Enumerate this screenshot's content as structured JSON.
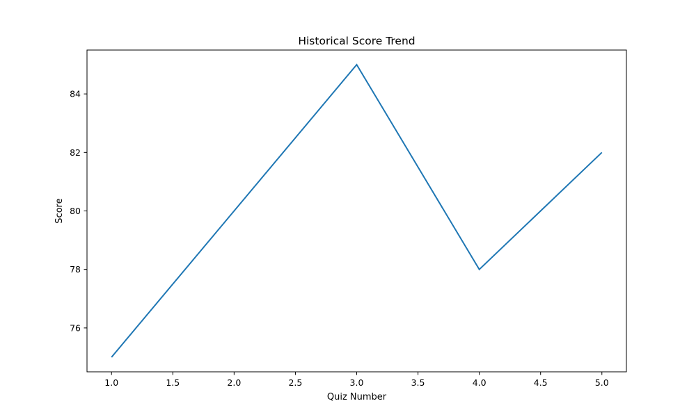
{
  "chart_data": {
    "type": "line",
    "title": "Historical Score Trend",
    "xlabel": "Quiz Number",
    "ylabel": "Score",
    "x": [
      1,
      2,
      3,
      4,
      5
    ],
    "series": [
      {
        "name": "Score",
        "values": [
          75,
          80,
          85,
          78,
          82
        ],
        "color": "#1f77b4"
      }
    ],
    "xlim": [
      0.8,
      5.2
    ],
    "ylim": [
      74.5,
      85.5
    ],
    "xticks": [
      "1.0",
      "1.5",
      "2.0",
      "2.5",
      "3.0",
      "3.5",
      "4.0",
      "4.5",
      "5.0"
    ],
    "yticks": [
      "76",
      "78",
      "80",
      "82",
      "84"
    ],
    "grid": false,
    "legend": "none"
  }
}
